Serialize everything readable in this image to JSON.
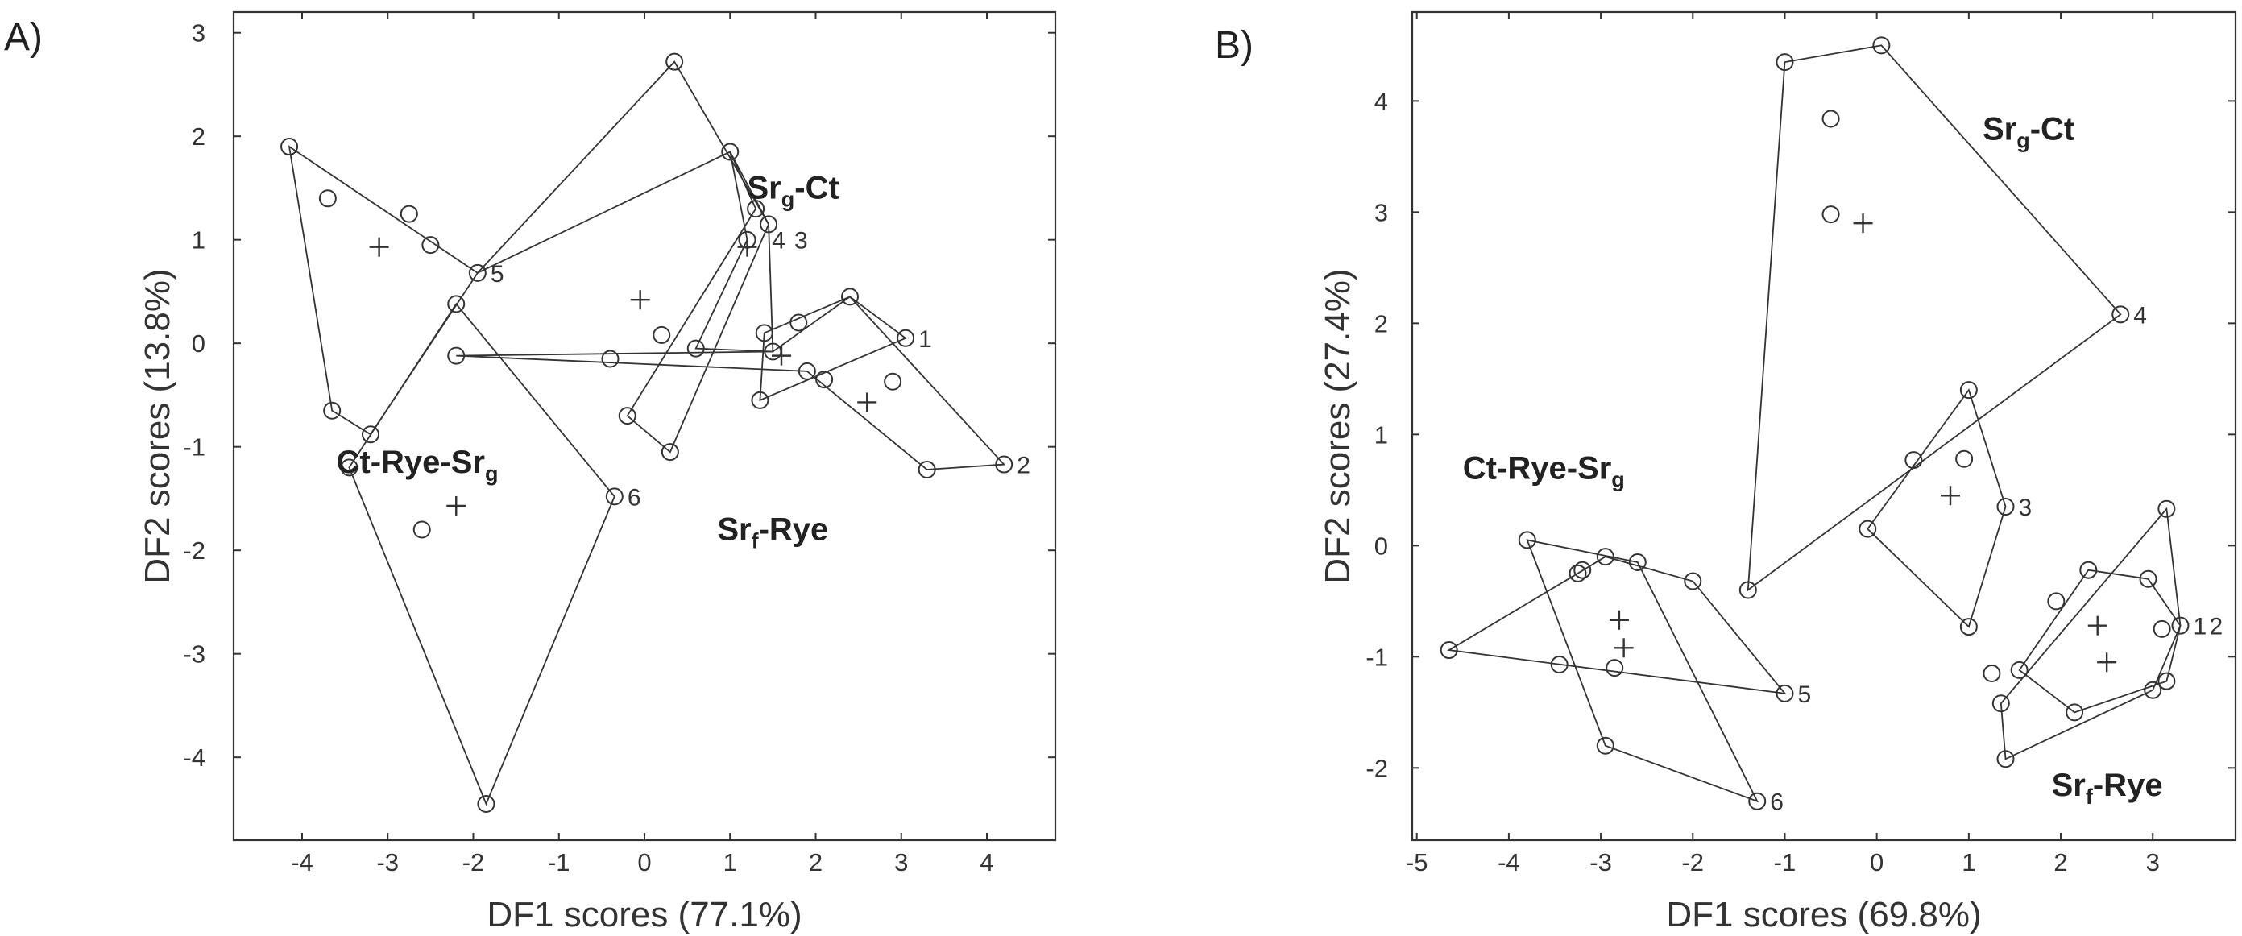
{
  "chart_data": [
    {
      "type": "scatter",
      "panel": "A)",
      "xlabel": "DF1 scores (77.1%)",
      "ylabel": "DF2 scores (13.8%)",
      "xlim": [
        -4.8,
        4.8
      ],
      "ylim": [
        -4.8,
        3.2
      ],
      "xticks": [
        -4,
        -3,
        -2,
        -1,
        0,
        1,
        2,
        3,
        4
      ],
      "yticks": [
        3,
        2,
        1,
        0,
        -1,
        -2,
        -3,
        -4
      ],
      "grid": false,
      "group_labels": [
        {
          "base": "Sr",
          "sub": "g",
          "rest": "-Ct",
          "x": 1.2,
          "y": 1.4
        },
        {
          "base": "Ct-Rye-Sr",
          "sub": "g",
          "rest": "",
          "x": -3.6,
          "y": -1.25
        },
        {
          "base": "Sr",
          "sub": "f",
          "rest": "-Rye",
          "x": 0.85,
          "y": -1.9
        }
      ],
      "series": [
        {
          "points": [
            [
              -3.7,
              1.4
            ],
            [
              -2.5,
              0.95
            ],
            [
              -0.4,
              -0.15
            ],
            [
              0.2,
              0.08
            ],
            [
              1.8,
              0.2
            ],
            [
              2.1,
              -0.35
            ],
            [
              -2.6,
              -1.8
            ]
          ]
        },
        {
          "points": [
            [
              0.35,
              2.72
            ],
            [
              1.0,
              1.85
            ],
            [
              1.3,
              1.3
            ],
            [
              1.45,
              1.15
            ],
            [
              1.2,
              1.0
            ],
            [
              0.6,
              -0.05
            ],
            [
              -0.2,
              -0.7
            ],
            [
              0.3,
              -1.05
            ],
            [
              3.05,
              0.05
            ],
            [
              2.4,
              0.45
            ],
            [
              2.9,
              -0.37
            ],
            [
              1.4,
              0.1
            ],
            [
              1.5,
              -0.08
            ],
            [
              1.9,
              -0.27
            ],
            [
              1.35,
              -0.55
            ],
            [
              -2.2,
              -0.12
            ],
            [
              3.3,
              -1.22
            ],
            [
              4.2,
              -1.17
            ],
            [
              -4.15,
              1.9
            ],
            [
              -2.75,
              1.25
            ],
            [
              -1.95,
              0.68
            ],
            [
              -2.2,
              0.38
            ],
            [
              -3.65,
              -0.65
            ],
            [
              -3.2,
              -0.88
            ],
            [
              -3.45,
              -1.2
            ],
            [
              -0.35,
              -1.48
            ],
            [
              -1.85,
              -4.45
            ]
          ]
        }
      ],
      "hulls": [
        {
          "id": "1",
          "points": [
            [
              1.4,
              0.1
            ],
            [
              2.4,
              0.45
            ],
            [
              3.05,
              0.05
            ],
            [
              1.35,
              -0.55
            ]
          ]
        },
        {
          "id": "2",
          "points": [
            [
              -2.2,
              -0.12
            ],
            [
              1.5,
              -0.08
            ],
            [
              2.4,
              0.45
            ],
            [
              4.2,
              -1.17
            ],
            [
              3.3,
              -1.22
            ],
            [
              1.9,
              -0.27
            ]
          ]
        },
        {
          "id": "3",
          "points": [
            [
              0.35,
              2.72
            ],
            [
              1.45,
              1.15
            ],
            [
              0.3,
              -1.05
            ],
            [
              -0.2,
              -0.7
            ],
            [
              1.3,
              1.3
            ],
            [
              1.0,
              1.85
            ],
            [
              -1.95,
              0.68
            ]
          ]
        },
        {
          "id": "4",
          "points": [
            [
              1.0,
              1.85
            ],
            [
              1.45,
              1.15
            ],
            [
              1.5,
              -0.08
            ],
            [
              0.6,
              -0.05
            ],
            [
              1.2,
              1.0
            ]
          ]
        },
        {
          "id": "5",
          "points": [
            [
              -4.15,
              1.9
            ],
            [
              -1.95,
              0.68
            ],
            [
              -3.2,
              -0.88
            ],
            [
              -3.65,
              -0.65
            ]
          ]
        },
        {
          "id": "6",
          "points": [
            [
              -2.2,
              0.38
            ],
            [
              -0.35,
              -1.48
            ],
            [
              -1.85,
              -4.45
            ],
            [
              -3.45,
              -1.2
            ]
          ]
        }
      ],
      "centroids": [
        [
          -3.1,
          0.93
        ],
        [
          -0.05,
          0.42
        ],
        [
          1.2,
          0.93
        ],
        [
          1.6,
          -0.12
        ],
        [
          2.6,
          -0.57
        ],
        [
          -2.2,
          -1.57
        ]
      ],
      "point_labels": [
        {
          "text": "1",
          "x": 3.05,
          "y": 0.05
        },
        {
          "text": "2",
          "x": 4.2,
          "y": -1.17
        },
        {
          "text": "3",
          "x": 1.6,
          "y": 1.0
        },
        {
          "text": "4",
          "x": 1.45,
          "y": 1.0
        },
        {
          "text": "5",
          "x": -1.95,
          "y": 0.68
        },
        {
          "text": "6",
          "x": -0.35,
          "y": -1.48
        }
      ]
    },
    {
      "type": "scatter",
      "panel": "B)",
      "xlabel": "DF1 scores (69.8%)",
      "ylabel": "DF2 scores (27.4%)",
      "xlim": [
        -5.05,
        3.9
      ],
      "ylim": [
        -2.65,
        4.8
      ],
      "xticks": [
        -5,
        -4,
        -3,
        -2,
        -1,
        0,
        1,
        2,
        3
      ],
      "yticks": [
        4,
        3,
        2,
        1,
        0,
        -1,
        -2
      ],
      "grid": false,
      "group_labels": [
        {
          "base": "Sr",
          "sub": "g",
          "rest": "-Ct",
          "x": 1.15,
          "y": 3.65
        },
        {
          "base": "Ct-Rye-Sr",
          "sub": "g",
          "rest": "",
          "x": -4.5,
          "y": 0.6
        },
        {
          "base": "Sr",
          "sub": "f",
          "rest": "-Rye",
          "x": 1.9,
          "y": -2.25
        }
      ],
      "series": [
        {
          "points": [
            [
              -0.5,
              3.84
            ],
            [
              -0.5,
              2.98
            ],
            [
              0.95,
              0.78
            ],
            [
              -3.25,
              -0.25
            ],
            [
              -3.2,
              -0.22
            ],
            [
              -2.95,
              -0.1
            ],
            [
              -2.6,
              -0.15
            ],
            [
              -2.0,
              -0.32
            ],
            [
              -3.45,
              -1.07
            ],
            [
              -2.85,
              -1.1
            ],
            [
              -2.95,
              -1.8
            ],
            [
              1.25,
              -1.15
            ],
            [
              1.95,
              -0.5
            ],
            [
              2.95,
              -0.3
            ],
            [
              3.1,
              -0.75
            ]
          ]
        },
        {
          "points": [
            [
              -1.0,
              4.35
            ],
            [
              0.05,
              4.5
            ],
            [
              2.65,
              2.08
            ],
            [
              -1.4,
              -0.4
            ],
            [
              1.0,
              1.4
            ],
            [
              0.4,
              0.77
            ],
            [
              1.4,
              0.35
            ],
            [
              -0.1,
              0.15
            ],
            [
              1.0,
              -0.73
            ],
            [
              -3.8,
              0.05
            ],
            [
              -4.65,
              -0.94
            ],
            [
              -1.0,
              -1.33
            ],
            [
              -1.3,
              -2.3
            ],
            [
              3.15,
              0.33
            ],
            [
              3.3,
              -0.72
            ],
            [
              3.15,
              -1.22
            ],
            [
              2.3,
              -0.22
            ],
            [
              1.55,
              -1.12
            ],
            [
              1.35,
              -1.42
            ],
            [
              1.4,
              -1.92
            ],
            [
              2.15,
              -1.5
            ],
            [
              3.0,
              -1.3
            ]
          ]
        }
      ],
      "hulls": [
        {
          "id": "1",
          "points": [
            [
              3.15,
              0.33
            ],
            [
              3.3,
              -0.72
            ],
            [
              3.0,
              -1.3
            ],
            [
              1.4,
              -1.92
            ],
            [
              1.35,
              -1.42
            ]
          ]
        },
        {
          "id": "2",
          "points": [
            [
              2.3,
              -0.22
            ],
            [
              2.95,
              -0.3
            ],
            [
              3.3,
              -0.72
            ],
            [
              3.15,
              -1.22
            ],
            [
              2.15,
              -1.5
            ],
            [
              1.55,
              -1.12
            ]
          ]
        },
        {
          "id": "3",
          "points": [
            [
              1.0,
              1.4
            ],
            [
              1.4,
              0.35
            ],
            [
              1.0,
              -0.73
            ],
            [
              -0.1,
              0.15
            ]
          ]
        },
        {
          "id": "4",
          "points": [
            [
              -1.0,
              4.35
            ],
            [
              0.05,
              4.5
            ],
            [
              2.65,
              2.08
            ],
            [
              -1.4,
              -0.4
            ]
          ]
        },
        {
          "id": "5",
          "points": [
            [
              -4.65,
              -0.94
            ],
            [
              -3.25,
              -0.25
            ],
            [
              -2.95,
              -0.1
            ],
            [
              -2.0,
              -0.32
            ],
            [
              -1.0,
              -1.33
            ]
          ]
        },
        {
          "id": "6",
          "points": [
            [
              -3.8,
              0.05
            ],
            [
              -2.6,
              -0.15
            ],
            [
              -1.3,
              -2.3
            ],
            [
              -2.95,
              -1.8
            ]
          ]
        }
      ],
      "centroids": [
        [
          -0.15,
          2.9
        ],
        [
          0.8,
          0.45
        ],
        [
          -2.8,
          -0.67
        ],
        [
          -2.75,
          -0.92
        ],
        [
          2.4,
          -0.72
        ],
        [
          2.5,
          -1.05
        ]
      ],
      "point_labels": [
        {
          "text": "4",
          "x": 2.65,
          "y": 2.08
        },
        {
          "text": "3",
          "x": 1.4,
          "y": 0.35
        },
        {
          "text": "5",
          "x": -1.0,
          "y": -1.33
        },
        {
          "text": "6",
          "x": -1.3,
          "y": -2.3
        },
        {
          "text": "1",
          "x": 3.3,
          "y": -0.72
        },
        {
          "text": "2",
          "x": 3.3,
          "y": -0.72
        }
      ]
    }
  ]
}
